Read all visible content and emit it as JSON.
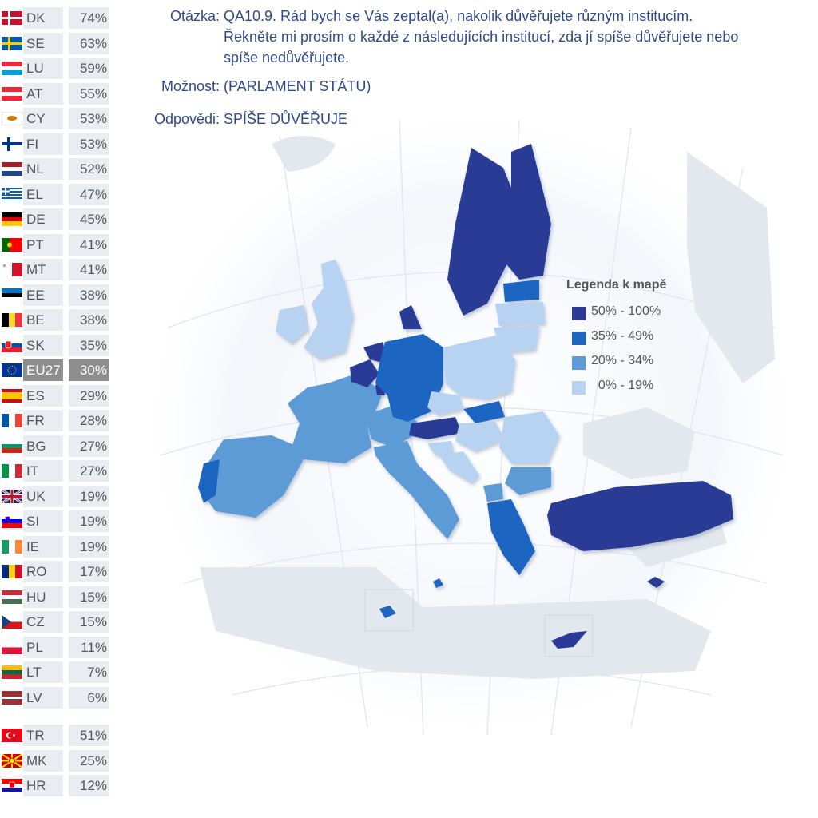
{
  "question": {
    "label_question": "Otázka:",
    "text_line1": "QA10.9. Rád bych se Vás zeptal(a), nakolik důvěřujete různým institucím.",
    "text_line2": "Řekněte mi prosím o každé z následujících institucí, zda jí spíše důvěřujete nebo",
    "text_line3": "spíše nedůvěřujete.",
    "label_option": "Možnost:",
    "option": "(PARLAMENT STÁTU)",
    "label_answer": "Odpovědi:",
    "answer": "SPÍŠE DŮVĚŘUJE"
  },
  "ranking": [
    {
      "code": "DK",
      "value": "74%",
      "flag": "dk"
    },
    {
      "code": "SE",
      "value": "63%",
      "flag": "se"
    },
    {
      "code": "LU",
      "value": "59%",
      "flag": "lu"
    },
    {
      "code": "AT",
      "value": "55%",
      "flag": "at"
    },
    {
      "code": "CY",
      "value": "53%",
      "flag": "cy"
    },
    {
      "code": "FI",
      "value": "53%",
      "flag": "fi"
    },
    {
      "code": "NL",
      "value": "52%",
      "flag": "nl"
    },
    {
      "code": "EL",
      "value": "47%",
      "flag": "gr"
    },
    {
      "code": "DE",
      "value": "45%",
      "flag": "de"
    },
    {
      "code": "PT",
      "value": "41%",
      "flag": "pt"
    },
    {
      "code": "MT",
      "value": "41%",
      "flag": "mt"
    },
    {
      "code": "EE",
      "value": "38%",
      "flag": "ee"
    },
    {
      "code": "BE",
      "value": "38%",
      "flag": "be"
    },
    {
      "code": "SK",
      "value": "35%",
      "flag": "sk"
    },
    {
      "code": "EU27",
      "value": "30%",
      "flag": "eu",
      "highlight": true
    },
    {
      "code": "ES",
      "value": "29%",
      "flag": "es"
    },
    {
      "code": "FR",
      "value": "28%",
      "flag": "fr"
    },
    {
      "code": "BG",
      "value": "27%",
      "flag": "bg"
    },
    {
      "code": "IT",
      "value": "27%",
      "flag": "it"
    },
    {
      "code": "UK",
      "value": "19%",
      "flag": "uk"
    },
    {
      "code": "SI",
      "value": "19%",
      "flag": "si"
    },
    {
      "code": "IE",
      "value": "19%",
      "flag": "ie"
    },
    {
      "code": "RO",
      "value": "17%",
      "flag": "ro"
    },
    {
      "code": "HU",
      "value": "15%",
      "flag": "hu"
    },
    {
      "code": "CZ",
      "value": "15%",
      "flag": "cz"
    },
    {
      "code": "PL",
      "value": "11%",
      "flag": "pl"
    },
    {
      "code": "LT",
      "value": "7%",
      "flag": "lt"
    },
    {
      "code": "LV",
      "value": "6%",
      "flag": "lv"
    },
    {
      "code": "TR",
      "value": "51%",
      "flag": "tr",
      "separated": true
    },
    {
      "code": "MK",
      "value": "25%",
      "flag": "mk"
    },
    {
      "code": "HR",
      "value": "12%",
      "flag": "hr"
    }
  ],
  "legend": {
    "title": "Legenda k mapě",
    "items": [
      {
        "label": "50% - 100%",
        "color": "#2b3a96"
      },
      {
        "label": "35% - 49%",
        "color": "#1f66c2"
      },
      {
        "label": "20% - 34%",
        "color": "#5b9bd6"
      },
      {
        "label": "  0% - 19%",
        "color": "#b7d3f1"
      }
    ]
  },
  "colors": {
    "dark": "#2b3a96",
    "mid": "#1f66c2",
    "light": "#5b9bd6",
    "pale": "#b7d3f1",
    "land_gray": "#e3e8ef",
    "text": "#2f4a8a"
  }
}
